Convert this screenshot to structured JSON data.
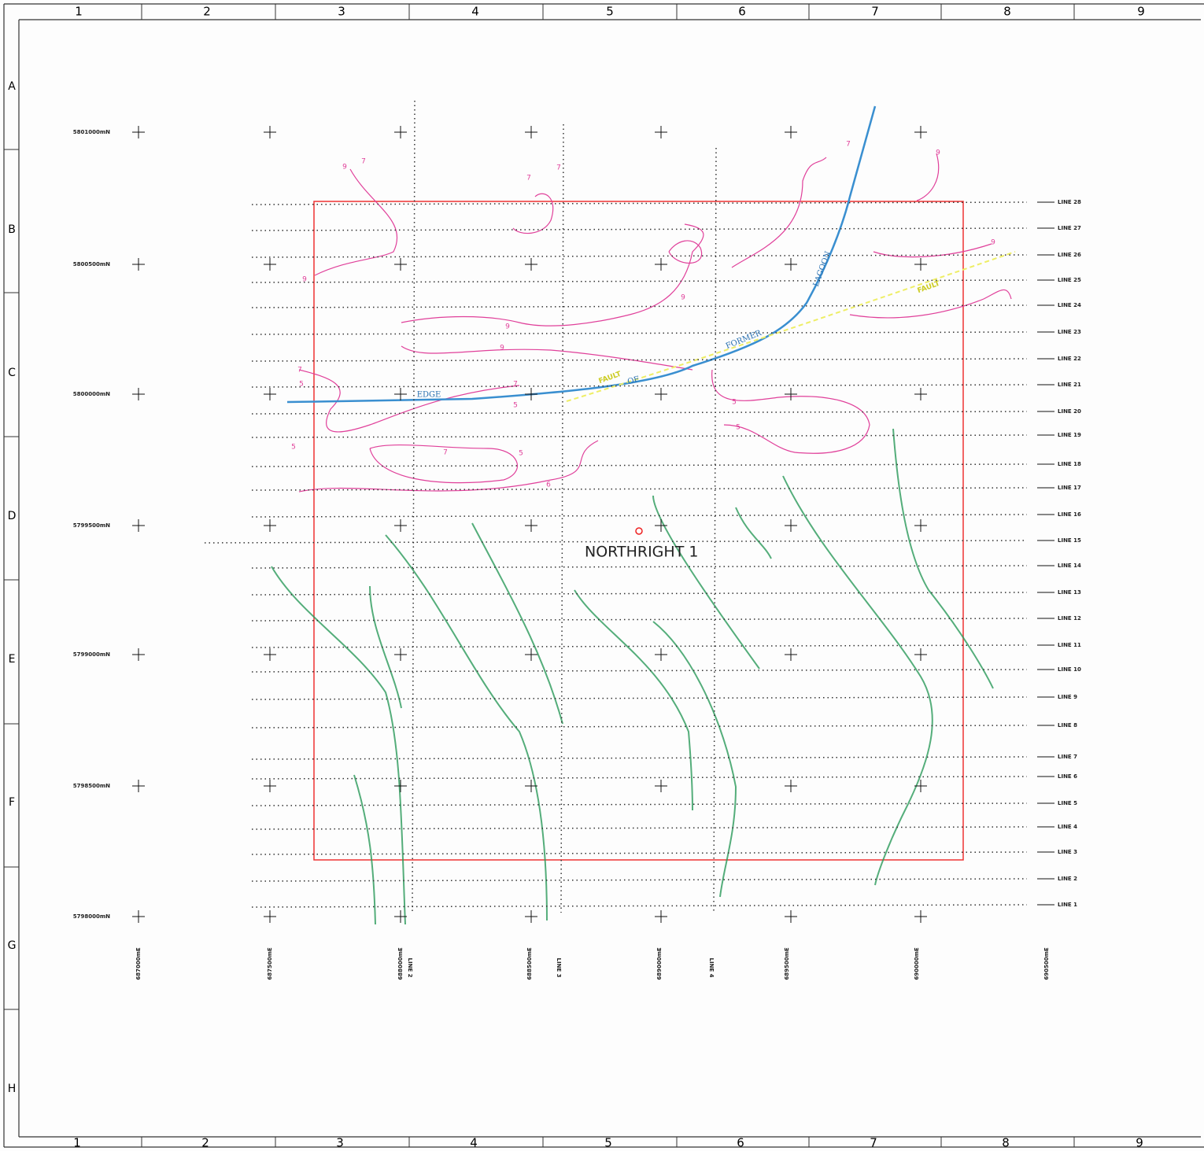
{
  "frame": {
    "top_columns": [
      "1",
      "2",
      "3",
      "4",
      "5",
      "6",
      "7",
      "8",
      "9"
    ],
    "bottom_columns": [
      "1",
      "2",
      "3",
      "4",
      "5",
      "6",
      "7",
      "8",
      "9"
    ],
    "rows": [
      "A",
      "B",
      "C",
      "D",
      "E",
      "F",
      "G",
      "H"
    ]
  },
  "map": {
    "northings": [
      "5801000mN",
      "5800500mN",
      "5800000mN",
      "5799500mN",
      "5799000mN",
      "5798500mN",
      "5798000mN"
    ],
    "eastings": [
      "687000mE",
      "687500mE",
      "688000mE",
      "688500mE",
      "689000mE",
      "689500mE",
      "690000mE",
      "690500mE"
    ],
    "seismic_lines": [
      "LINE 28",
      "LINE 27",
      "LINE 26",
      "LINE 25",
      "LINE 24",
      "LINE 23",
      "LINE 22",
      "LINE 21",
      "LINE 20",
      "LINE 19",
      "LINE 18",
      "LINE 17",
      "LINE 16",
      "LINE 15",
      "LINE 14",
      "LINE 13",
      "LINE 12",
      "LINE 11",
      "LINE 10",
      "LINE 9",
      "LINE 8",
      "LINE 7",
      "LINE 6",
      "LINE 5",
      "LINE 4",
      "LINE 3",
      "LINE 2",
      "LINE 1"
    ],
    "cross_lines": [
      "LINE 2",
      "LINE 3",
      "LINE 4"
    ],
    "well": "NORTHRIGHT 1",
    "lagoon_labels": [
      "EDGE",
      "OF",
      "FORMER",
      "LAGOON"
    ],
    "fault_labels": [
      "FAULT",
      "FAULT"
    ],
    "contour_labels": [
      "9",
      "7",
      "9",
      "7",
      "7",
      "9",
      "9",
      "9",
      "7",
      "9",
      "5",
      "7",
      "5",
      "7",
      "5",
      "5",
      "7",
      "5",
      "5",
      "6",
      "9"
    ]
  }
}
